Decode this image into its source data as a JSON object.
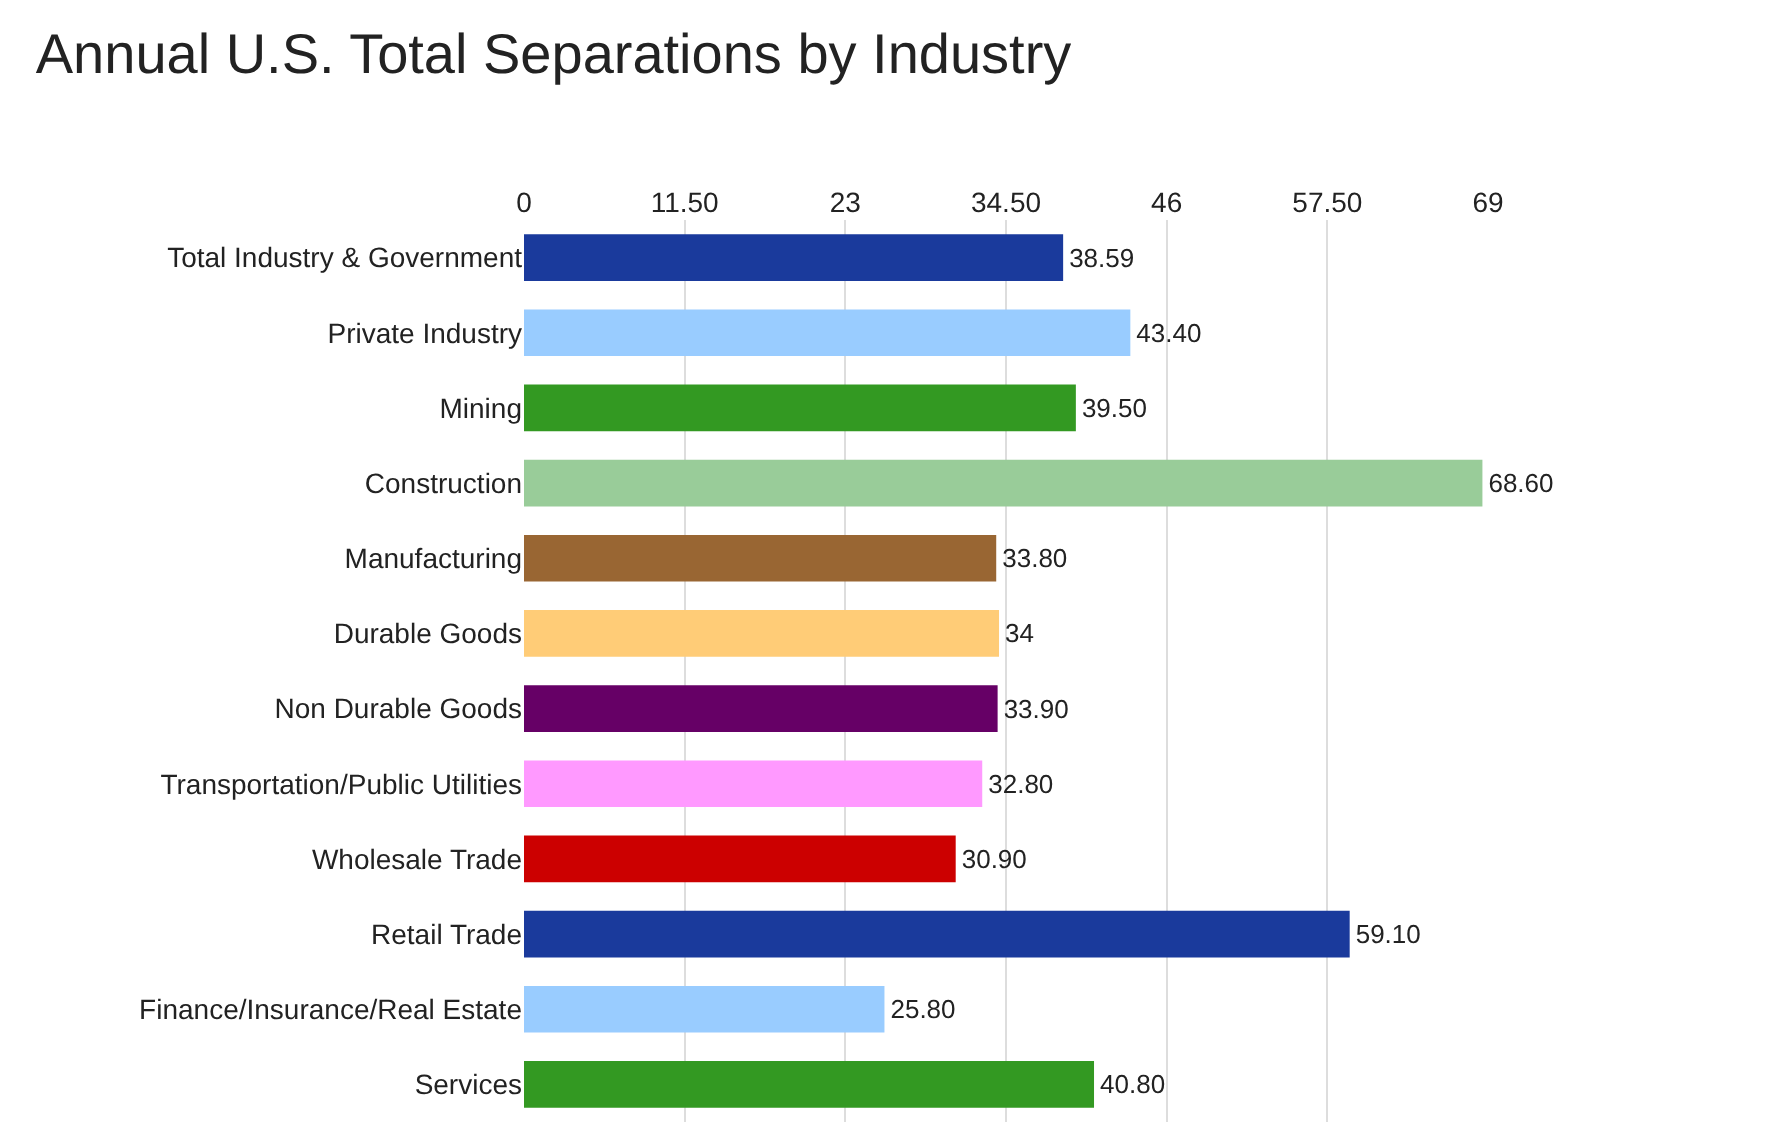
{
  "chart_data": {
    "type": "bar",
    "title": "Annual U.S. Total Separations by Industry",
    "orientation": "horizontal",
    "categories": [
      "Total Industry & Government",
      "Private Industry",
      "Mining",
      "Construction",
      "Manufacturing",
      "Durable Goods",
      "Non Durable Goods",
      "Transportation/Public Utilities",
      "Wholesale Trade",
      "Retail Trade",
      "Finance/Insurance/Real Estate",
      "Services"
    ],
    "values": [
      38.59,
      43.4,
      39.5,
      68.6,
      33.8,
      34,
      33.9,
      32.8,
      30.9,
      59.1,
      25.8,
      40.8
    ],
    "value_labels": [
      "38.59",
      "43.40",
      "39.50",
      "68.60",
      "33.80",
      "34",
      "33.90",
      "32.80",
      "30.90",
      "59.10",
      "25.80",
      "40.80"
    ],
    "colors": [
      "#1a3a9c",
      "#99ccff",
      "#339922",
      "#99cc99",
      "#996633",
      "#ffcc77",
      "#660066",
      "#ff99ff",
      "#cc0000",
      "#1a3a9c",
      "#99ccff",
      "#339922"
    ],
    "xlim": [
      0,
      69
    ],
    "xticks": [
      0,
      {
        "value": 11.5,
        "label": "11.50"
      },
      23,
      {
        "value": 34.5,
        "label": "34.50"
      },
      46,
      {
        "value": 57.5,
        "label": "57.50"
      },
      69
    ],
    "grid": "x",
    "legend": false
  }
}
